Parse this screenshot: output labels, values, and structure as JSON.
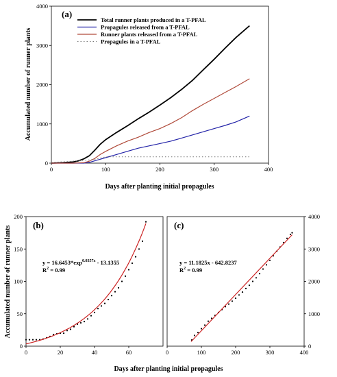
{
  "chart_data": [
    {
      "panel_label": "(a)",
      "type": "line",
      "xlabel": "Days after planting initial propagules",
      "ylabel": "Accumulated number of runner plants",
      "xlim": [
        0,
        400
      ],
      "ylim": [
        0,
        4000
      ],
      "xticks": [
        "0",
        "100",
        "200",
        "300",
        "400"
      ],
      "yticks": [
        "0",
        "1000",
        "2000",
        "3000",
        "4000"
      ],
      "legend_position": "top-left",
      "series": [
        {
          "name": "Total runner plants produced in a T-PFAL",
          "color": "#000000",
          "style": "solid",
          "x": [
            0,
            20,
            40,
            50,
            60,
            70,
            80,
            90,
            100,
            120,
            140,
            160,
            180,
            200,
            220,
            240,
            260,
            280,
            300,
            320,
            340,
            365
          ],
          "y": [
            0,
            10,
            30,
            60,
            110,
            190,
            330,
            480,
            600,
            780,
            950,
            1130,
            1300,
            1480,
            1670,
            1880,
            2110,
            2380,
            2650,
            2930,
            3200,
            3500
          ]
        },
        {
          "name": "Propagules released from a T-PFAL",
          "color": "#2323a8",
          "style": "solid",
          "x": [
            0,
            40,
            60,
            70,
            80,
            90,
            100,
            120,
            140,
            160,
            180,
            200,
            220,
            240,
            260,
            280,
            300,
            320,
            340,
            365
          ],
          "y": [
            0,
            0,
            0,
            20,
            60,
            100,
            140,
            220,
            300,
            380,
            440,
            500,
            560,
            640,
            720,
            800,
            880,
            960,
            1050,
            1200
          ]
        },
        {
          "name": "Runner plants released from a T-PFAL",
          "color": "#b04a3a",
          "style": "solid",
          "x": [
            0,
            40,
            60,
            70,
            80,
            90,
            100,
            120,
            140,
            160,
            180,
            200,
            220,
            240,
            260,
            280,
            300,
            320,
            340,
            365
          ],
          "y": [
            0,
            0,
            10,
            50,
            120,
            220,
            300,
            440,
            560,
            660,
            780,
            880,
            1010,
            1160,
            1340,
            1500,
            1650,
            1800,
            1950,
            2150
          ]
        },
        {
          "name": "Propagules in a T-PFAL",
          "color": "#777777",
          "style": "dotted",
          "x": [
            0,
            30,
            60,
            80,
            100,
            365
          ],
          "y": [
            20,
            40,
            70,
            100,
            160,
            160
          ]
        }
      ]
    },
    {
      "panel_label": "(b)",
      "type": "scatter",
      "xlabel": "Days after planting initial propagules",
      "ylabel": "Accumulated number of runner plants",
      "xlim": [
        0,
        80
      ],
      "ylim": [
        0,
        200
      ],
      "xticks": [
        "0",
        "20",
        "40",
        "60"
      ],
      "yticks": [
        "0",
        "50",
        "100",
        "150",
        "200"
      ],
      "equation": "y = 16.6453*exp",
      "equation_exponent": "0.0357x",
      "equation_tail": " - 13.1355",
      "r2_label": "R",
      "r2_exp": "2",
      "r2_value": " = 0.99",
      "fit": {
        "a": 16.6453,
        "b": 0.0357,
        "c": -13.1355,
        "x_range": [
          0,
          70
        ],
        "color": "#cc2222"
      },
      "points": {
        "x": [
          0,
          2,
          4,
          6,
          8,
          10,
          12,
          14,
          16,
          18,
          20,
          22,
          24,
          26,
          28,
          30,
          32,
          34,
          36,
          38,
          40,
          42,
          44,
          46,
          48,
          50,
          52,
          54,
          56,
          58,
          60,
          62,
          64,
          66,
          68,
          70
        ],
        "y": [
          10,
          10,
          10,
          10,
          10,
          11,
          13,
          15,
          18,
          19,
          20,
          20,
          24,
          26,
          30,
          34,
          36,
          38,
          42,
          47,
          52,
          58,
          62,
          66,
          72,
          78,
          84,
          90,
          100,
          108,
          118,
          128,
          138,
          150,
          162,
          192
        ],
        "color": "#000000"
      }
    },
    {
      "panel_label": "(c)",
      "type": "scatter",
      "xlabel": "",
      "ylabel": "",
      "xlim": [
        0,
        400
      ],
      "ylim": [
        0,
        4000
      ],
      "xticks": [
        "0",
        "100",
        "200",
        "300",
        "400"
      ],
      "yticks": [
        "0",
        "1000",
        "2000",
        "3000",
        "4000"
      ],
      "yaxis_side": "right",
      "equation": "y = 11.1825x - 642.8237",
      "r2_label": "R",
      "r2_exp": "2",
      "r2_value": " = 0.99",
      "fit": {
        "slope": 11.1825,
        "intercept": -642.8237,
        "x_range": [
          70,
          365
        ],
        "color": "#cc2222"
      },
      "points": {
        "x": [
          72,
          80,
          90,
          100,
          110,
          120,
          130,
          140,
          150,
          160,
          170,
          180,
          190,
          200,
          210,
          220,
          230,
          240,
          250,
          260,
          270,
          280,
          290,
          300,
          310,
          320,
          330,
          340,
          350,
          360,
          365
        ],
        "y": [
          190,
          330,
          420,
          540,
          650,
          770,
          860,
          950,
          1040,
          1130,
          1220,
          1300,
          1390,
          1480,
          1580,
          1670,
          1780,
          1880,
          2000,
          2110,
          2240,
          2380,
          2510,
          2650,
          2790,
          2930,
          3060,
          3200,
          3330,
          3450,
          3500
        ],
        "color": "#000000"
      }
    }
  ],
  "bottom_xlabel": "Days after planting initial propagules"
}
